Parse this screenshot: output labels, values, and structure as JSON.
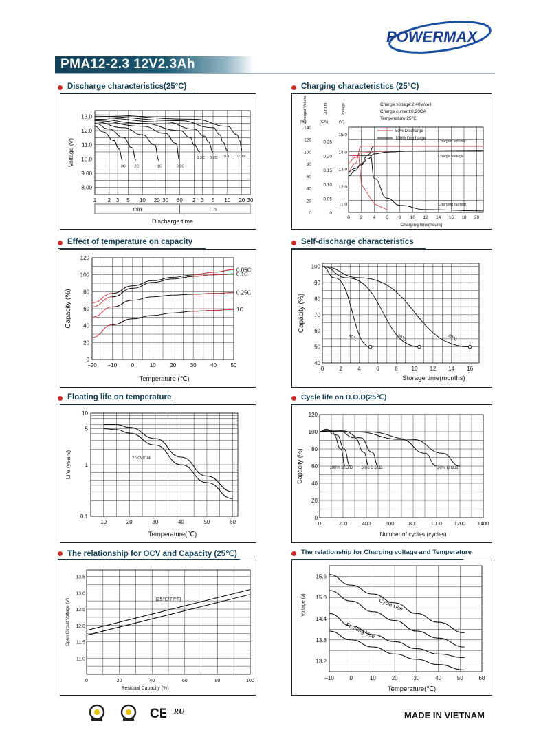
{
  "brand": {
    "logo": "POWERMAX"
  },
  "model_title": "PMA12-2.3 12V2.3Ah",
  "footer": {
    "made_in": "MADE IN VIETNAM"
  },
  "certifications": [
    "quality-mark-icon",
    "quality-mark-icon",
    "ce-mark-icon",
    "ul-mark-icon"
  ],
  "colors": {
    "header": "#123f55",
    "accent_red": "#d12a2a",
    "curve_red": "#c8414a",
    "grid": "#222222"
  },
  "sections": {
    "discharge": "Discharge characteristics(25°C)",
    "charging": "Charging characteristics (25°C)",
    "temp_capacity": "Effect of temperature on capacity",
    "self_discharge": "Self-discharge characteristics",
    "floating_life": "Floating life on temperature",
    "cycle_life": "Cycle life on D.O.D(25℃)",
    "ocv": "The relationship  for OCV and Capacity (25℃)",
    "charge_voltage_temp": "The relationship for Charging voltage and Temperature"
  },
  "chart_data": [
    {
      "id": "discharge",
      "type": "line",
      "ylabel": "Voltage (V)",
      "xlabel": "Discharge time",
      "x_ticks": [
        "1",
        "2",
        "3",
        "5",
        "10",
        "20",
        "30",
        "60",
        "2",
        "3",
        "5",
        "10",
        "20",
        "30"
      ],
      "x_groups": [
        "min",
        "h"
      ],
      "y_ticks": [
        "13.0",
        "12.0",
        "11.0",
        "10.0",
        "9.00",
        "8.00"
      ],
      "ylim": [
        7.5,
        13.4
      ],
      "series": [
        {
          "name": "3C",
          "x": [
            1,
            1.5,
            2.5,
            3.2,
            3.8
          ],
          "y": [
            12.3,
            11.9,
            11.3,
            10.7,
            9.9
          ]
        },
        {
          "name": "2C",
          "x": [
            1,
            2,
            4,
            6,
            7.3
          ],
          "y": [
            12.5,
            12.1,
            11.5,
            10.8,
            9.9
          ]
        },
        {
          "name": "1C",
          "x": [
            1,
            4,
            10,
            18,
            22
          ],
          "y": [
            12.6,
            12.2,
            11.7,
            11.0,
            9.9
          ]
        },
        {
          "name": "0.6C",
          "x": [
            1,
            10,
            30,
            50,
            60
          ],
          "y": [
            12.7,
            12.3,
            11.8,
            11.1,
            9.9
          ]
        },
        {
          "name": "0.3C",
          "x": [
            1,
            10,
            60,
            100,
            120,
            160
          ],
          "y": [
            12.8,
            12.5,
            12.0,
            11.5,
            11.0,
            10.5
          ]
        },
        {
          "name": "0.2C",
          "x": [
            1,
            30,
            120,
            200,
            240,
            300
          ],
          "y": [
            12.9,
            12.6,
            12.1,
            11.6,
            11.2,
            10.5
          ]
        },
        {
          "name": "0.1C",
          "x": [
            1,
            60,
            300,
            420,
            480,
            600
          ],
          "y": [
            13.0,
            12.7,
            12.2,
            11.7,
            11.2,
            10.6
          ]
        },
        {
          "name": "0.05C",
          "x": [
            1,
            120,
            600,
            960,
            1080,
            1200
          ],
          "y": [
            13.1,
            12.8,
            12.3,
            11.7,
            11.3,
            10.6
          ]
        }
      ]
    },
    {
      "id": "charging",
      "type": "line",
      "xlabel": "Charging time(hours)",
      "x_ticks": [
        "0",
        "2",
        "4",
        "6",
        "8",
        "10",
        "12",
        "14",
        "16",
        "18",
        "20"
      ],
      "axis_headers": [
        "Charged Volume",
        "Current",
        "Voltage"
      ],
      "axis_units": [
        "(%)",
        "(CA)",
        "(V)"
      ],
      "volume_ticks": [
        "140",
        "120",
        "100",
        "80",
        "60",
        "40",
        "20",
        "0"
      ],
      "current_ticks": [
        "0.25",
        "0.20",
        "0.15",
        "0.10",
        "0.05",
        "0"
      ],
      "voltage_ticks": [
        "15.0",
        "14.0",
        "13.0",
        "12.0",
        "11.0"
      ],
      "notes": [
        "Charge voltage:2.40V/cell",
        "Charge current:0.20CA",
        "Temperature:25℃"
      ],
      "legend": [
        "50% Discharge",
        "100% Discharge"
      ],
      "curve_labels": [
        "Charged volume",
        "Charge voltage",
        "Charging current"
      ],
      "series": [
        {
          "name": "Charge voltage",
          "x": [
            0,
            1,
            2,
            3,
            4,
            8,
            14,
            21
          ],
          "y": [
            12.6,
            12.9,
            13.3,
            13.8,
            14.3,
            14.3,
            14.3,
            14.3
          ]
        },
        {
          "name": "Charged volume",
          "x": [
            0,
            1,
            2,
            3,
            4,
            6,
            10,
            21
          ],
          "y": [
            67,
            72,
            78,
            88,
            96,
            99,
            101,
            102
          ]
        },
        {
          "name": "Charging current",
          "x": [
            0,
            3.4,
            4,
            6,
            8,
            12,
            21
          ],
          "y": [
            0.2,
            0.2,
            0.12,
            0.05,
            0.025,
            0.01,
            0.005
          ]
        }
      ]
    },
    {
      "id": "temp_capacity",
      "type": "line",
      "ylabel": "Capacity (%)",
      "xlabel": "Temperature (℃)",
      "x": [
        -20,
        -10,
        0,
        10,
        20,
        30,
        40,
        50
      ],
      "y_ticks": [
        "120",
        "100",
        "80",
        "60",
        "40",
        "20",
        "0"
      ],
      "series": [
        {
          "name": "0.05C",
          "values": [
            67,
            78,
            87,
            93,
            97,
            100,
            103,
            106
          ]
        },
        {
          "name": "0.1C",
          "values": [
            62,
            74,
            84,
            91,
            95,
            98,
            100,
            101
          ]
        },
        {
          "name": "0.25C",
          "values": [
            50,
            62,
            70,
            74,
            76,
            77,
            78,
            79
          ]
        },
        {
          "name": "1C",
          "values": [
            26,
            41,
            48,
            52,
            55,
            57,
            58,
            59
          ]
        }
      ]
    },
    {
      "id": "self_discharge",
      "type": "line",
      "ylabel": "Capacity (%)",
      "xlabel": "Storage time(months)",
      "x_ticks": [
        "0",
        "2",
        "4",
        "6",
        "8",
        "10",
        "12",
        "14",
        "16"
      ],
      "y_ticks": [
        "100",
        "90",
        "80",
        "70",
        "60",
        "50",
        "40"
      ],
      "series": [
        {
          "name": "40℃",
          "x": [
            0,
            5.2
          ],
          "y": [
            100,
            50
          ]
        },
        {
          "name": "30℃",
          "x": [
            0,
            10.5
          ],
          "y": [
            100,
            50
          ]
        },
        {
          "name": "20℃",
          "x": [
            0,
            16
          ],
          "y": [
            100,
            50
          ]
        }
      ]
    },
    {
      "id": "floating_life",
      "type": "line",
      "ylabel": "Life (years)",
      "xlabel": "Temperature(℃)",
      "x_ticks": [
        "10",
        "20",
        "30",
        "40",
        "50",
        "60"
      ],
      "y_ticks": [
        "10",
        "5",
        "1",
        "0.1"
      ],
      "annotation": "2.30V/Cell",
      "series": [
        {
          "name": "upper",
          "x": [
            10,
            15,
            20,
            30,
            40,
            50,
            60
          ],
          "y": [
            6,
            6,
            5.3,
            3.2,
            1.4,
            0.6,
            0.3
          ]
        },
        {
          "name": "lower",
          "x": [
            10,
            15,
            20,
            30,
            40,
            50,
            60
          ],
          "y": [
            5,
            4.8,
            4.1,
            2.4,
            1.0,
            0.45,
            0.22
          ]
        }
      ]
    },
    {
      "id": "cycle_life",
      "type": "line",
      "ylabel": "Capacity (%)",
      "xlabel": "Number of cycles (cycles)",
      "x_ticks": [
        "0",
        "200",
        "400",
        "600",
        "800",
        "1000",
        "1200",
        "1400"
      ],
      "y_ticks": [
        "120",
        "100",
        "80",
        "60",
        "40",
        "20",
        "0"
      ],
      "labels": [
        "100% D.O.D.",
        "50% D.O.D.",
        "30% D.O.D."
      ],
      "series": [
        {
          "name": "100% D.O.D. (a)",
          "x": [
            0,
            60,
            120,
            180,
            220
          ],
          "y": [
            100,
            103,
            97,
            80,
            60
          ]
        },
        {
          "name": "100% D.O.D. (b)",
          "x": [
            0,
            80,
            150,
            210,
            260
          ],
          "y": [
            100,
            102,
            96,
            80,
            60
          ]
        },
        {
          "name": "50% D.O.D. (a)",
          "x": [
            0,
            150,
            300,
            380,
            420
          ],
          "y": [
            100,
            102,
            93,
            76,
            60
          ]
        },
        {
          "name": "50% D.O.D. (b)",
          "x": [
            0,
            200,
            350,
            450,
            500
          ],
          "y": [
            100,
            101,
            93,
            76,
            60
          ]
        },
        {
          "name": "30% D.O.D. (a)",
          "x": [
            0,
            300,
            700,
            900,
            1000
          ],
          "y": [
            100,
            100,
            91,
            75,
            60
          ]
        },
        {
          "name": "30% D.O.D. (b)",
          "x": [
            0,
            400,
            800,
            1050,
            1200
          ],
          "y": [
            100,
            100,
            91,
            75,
            60
          ]
        }
      ]
    },
    {
      "id": "ocv",
      "type": "line",
      "ylabel": "Open Circuit Voltage (V)",
      "xlabel": "Residual Capacity (%)",
      "x_ticks": [
        "0",
        "20",
        "40",
        "60",
        "80",
        "100"
      ],
      "y_ticks": [
        "13.5",
        "13.0",
        "12.5",
        "12.0",
        "11.5",
        "11.0"
      ],
      "annotation": "(25℃/77°F)",
      "series": [
        {
          "name": "upper",
          "x": [
            0,
            100
          ],
          "y": [
            11.85,
            13.1
          ]
        },
        {
          "name": "lower",
          "x": [
            0,
            100
          ],
          "y": [
            11.7,
            12.95
          ]
        }
      ]
    },
    {
      "id": "charge_voltage_temp",
      "type": "line",
      "ylabel": "Voltage (v)",
      "xlabel": "Temperature(℃)",
      "x_ticks": [
        "−10",
        "0",
        "10",
        "20",
        "30",
        "40",
        "50",
        "60"
      ],
      "y_ticks": [
        "15.6",
        "15.0",
        "14.4",
        "13.8",
        "13.2"
      ],
      "bands": [
        "Cycle Use",
        "Floating Use"
      ],
      "series": [
        {
          "name": "Cycle Use upper",
          "x": [
            -10,
            0,
            10,
            20,
            30,
            40,
            52
          ],
          "y": [
            15.65,
            15.35,
            15.1,
            14.85,
            14.55,
            14.3,
            14.0
          ]
        },
        {
          "name": "Cycle Use lower",
          "x": [
            -10,
            0,
            10,
            20,
            30,
            40,
            52
          ],
          "y": [
            15.2,
            14.9,
            14.6,
            14.35,
            14.05,
            13.85,
            13.6
          ]
        },
        {
          "name": "Floating Use upper",
          "x": [
            -10,
            0,
            10,
            20,
            30,
            40,
            52
          ],
          "y": [
            14.55,
            14.2,
            13.95,
            13.75,
            13.55,
            13.4,
            13.3
          ]
        },
        {
          "name": "Floating Use lower",
          "x": [
            -10,
            0,
            10,
            20,
            30,
            40,
            52
          ],
          "y": [
            14.05,
            13.8,
            13.6,
            13.4,
            13.25,
            13.1,
            12.95
          ]
        }
      ]
    }
  ]
}
